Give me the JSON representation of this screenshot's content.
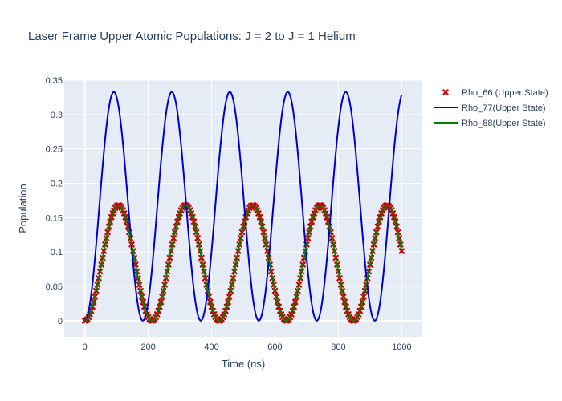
{
  "chart_data": {
    "type": "line",
    "title": "Laser Frame Upper Atomic Populations: J = 2 to J = 1 Helium",
    "xlabel": "Time (ns)",
    "ylabel": "Population",
    "xlim": [
      -65,
      1065
    ],
    "ylim": [
      -0.0235,
      0.35
    ],
    "x_ticks": [
      0,
      200,
      400,
      600,
      800,
      1000
    ],
    "y_ticks": [
      0,
      0.05,
      0.1,
      0.15,
      0.2,
      0.25,
      0.3,
      0.35
    ],
    "grid": true,
    "legend_position": "top-right",
    "series": [
      {
        "name": "Rho_66 (Upper State)",
        "mode": "markers",
        "marker": "x",
        "color": "#cc0000",
        "model": {
          "amplitude": 0.084,
          "offset": 0.084,
          "period": 212,
          "phase_deg": 0,
          "x_start": 0,
          "x_end": 1000,
          "x_step": 4
        }
      },
      {
        "name": "Rho_77(Upper State)",
        "mode": "lines",
        "color": "#0000cc",
        "model": {
          "amplitude": 0.1665,
          "offset": 0.1665,
          "period": 183,
          "phase_deg": 0,
          "x_start": 0,
          "x_end": 1000,
          "x_step": 2
        }
      },
      {
        "name": "Rho_88(Upper State)",
        "mode": "lines",
        "color": "#008000",
        "model": {
          "amplitude": 0.084,
          "offset": 0.084,
          "period": 212,
          "phase_deg": 0,
          "x_start": 0,
          "x_end": 1000,
          "x_step": 2
        }
      }
    ]
  }
}
